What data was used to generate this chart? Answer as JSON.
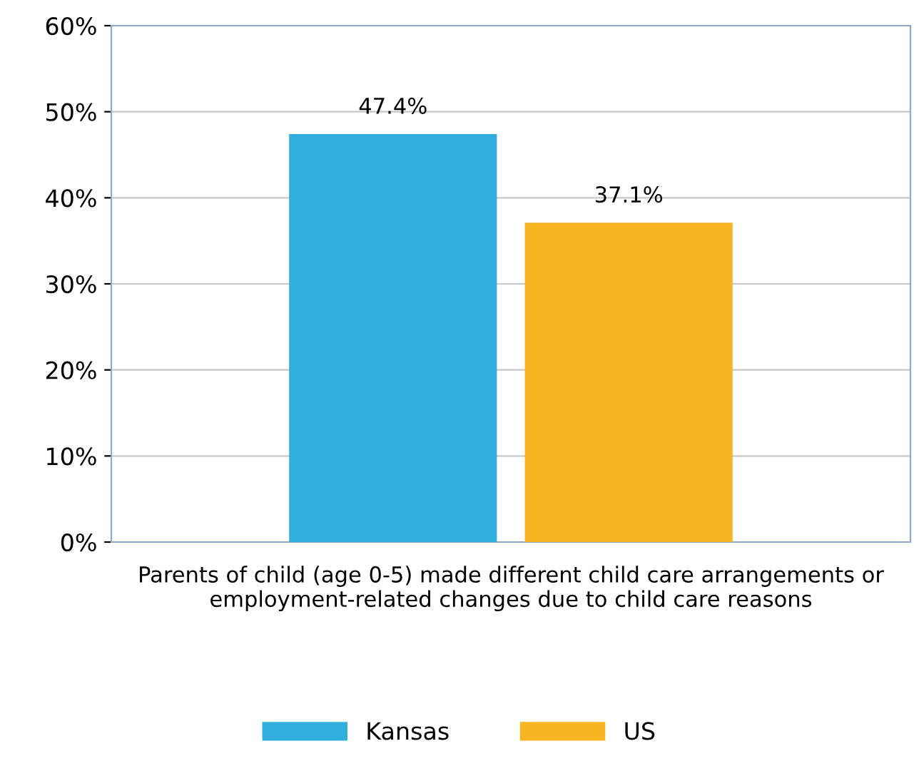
{
  "chart_data": {
    "type": "bar",
    "categories": [
      "Parents of child (age 0-5) made different child care arrangements or employment-related changes due to child care reasons"
    ],
    "series": [
      {
        "name": "Kansas",
        "color": "#31aedb",
        "values": [
          47.4
        ],
        "value_labels": [
          "47.4%"
        ]
      },
      {
        "name": "US",
        "color": "#f7b521",
        "values": [
          37.1
        ],
        "value_labels": [
          "37.1%"
        ]
      }
    ],
    "ylim": [
      0,
      60
    ],
    "yticks": [
      {
        "value": 0,
        "label": "0%"
      },
      {
        "value": 10,
        "label": "10%"
      },
      {
        "value": 20,
        "label": "20%"
      },
      {
        "value": 30,
        "label": "30%"
      },
      {
        "value": 40,
        "label": "40%"
      },
      {
        "value": 50,
        "label": "50%"
      },
      {
        "value": 60,
        "label": "60%"
      }
    ],
    "grid": "y",
    "legend": "bottom"
  }
}
